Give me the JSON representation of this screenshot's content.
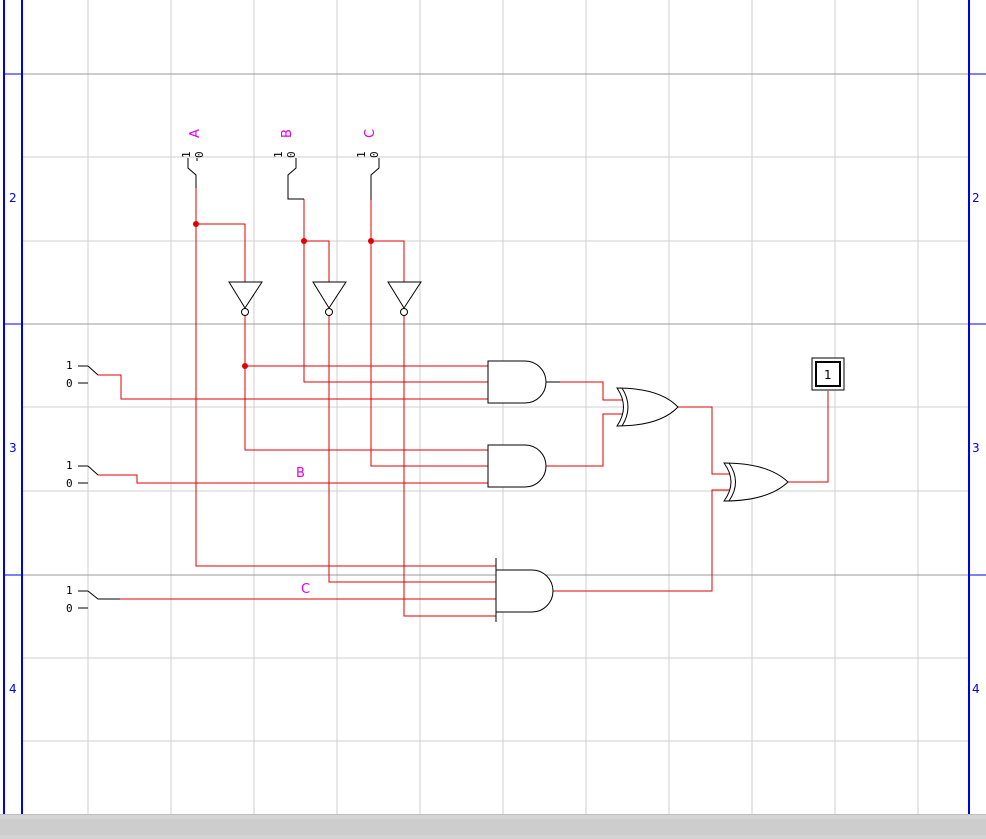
{
  "colors": {
    "wire": "#e00000",
    "gate": "#000000",
    "label": "#e000e0",
    "border": "#0000e0",
    "grid_minor": "#cfcfcf",
    "grid_major": "#9a9a9a",
    "junction": "#e00000"
  },
  "rulers": {
    "left": [
      "2",
      "3",
      "4"
    ],
    "right": [
      "2",
      "3",
      "4"
    ]
  },
  "inputs": [
    {
      "label": "A",
      "high": "1",
      "low": "0"
    },
    {
      "label": "B",
      "high": "1",
      "low": "0"
    },
    {
      "label": "C",
      "high": "1",
      "low": "0"
    }
  ],
  "side_switches": [
    {
      "high": "1",
      "low": "0"
    },
    {
      "high": "1",
      "low": "0"
    },
    {
      "high": "1",
      "low": "0"
    }
  ],
  "wire_labels": [
    "B",
    "C"
  ],
  "probe": {
    "value": "1"
  },
  "gates": {
    "not_count": 3,
    "and_count": 3,
    "or_count": 2
  }
}
